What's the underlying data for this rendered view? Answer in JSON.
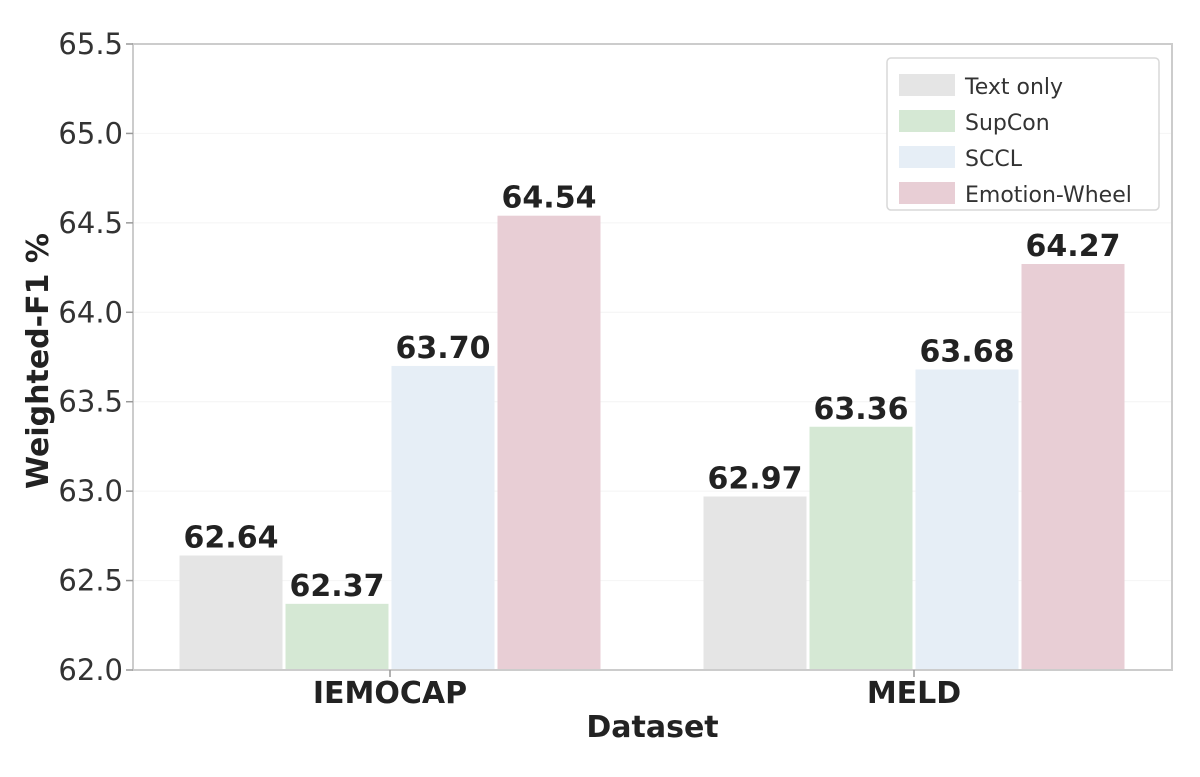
{
  "chart_data": {
    "type": "bar",
    "title": "",
    "xlabel": "Dataset",
    "ylabel": "Weighted-F1 %",
    "ylim": [
      62.0,
      65.5
    ],
    "yticks": [
      "62.0",
      "62.5",
      "63.0",
      "63.5",
      "64.0",
      "64.5",
      "65.0",
      "65.5"
    ],
    "grid": true,
    "legend_position": "top-right",
    "categories": [
      "IEMOCAP",
      "MELD"
    ],
    "series": [
      {
        "name": "Text only",
        "color": "#e5e5e5",
        "values": [
          62.64,
          62.97
        ],
        "labels": [
          "62.64",
          "62.97"
        ]
      },
      {
        "name": "SupCon",
        "color": "#d5e8d4",
        "values": [
          62.37,
          63.36
        ],
        "labels": [
          "62.37",
          "63.36"
        ]
      },
      {
        "name": "SCCL",
        "color": "#e6eef6",
        "values": [
          63.7,
          63.68
        ],
        "labels": [
          "63.70",
          "63.68"
        ]
      },
      {
        "name": "Emotion-Wheel",
        "color": "#e8ced5",
        "values": [
          64.54,
          64.27
        ],
        "labels": [
          "64.54",
          "64.27"
        ]
      }
    ]
  }
}
